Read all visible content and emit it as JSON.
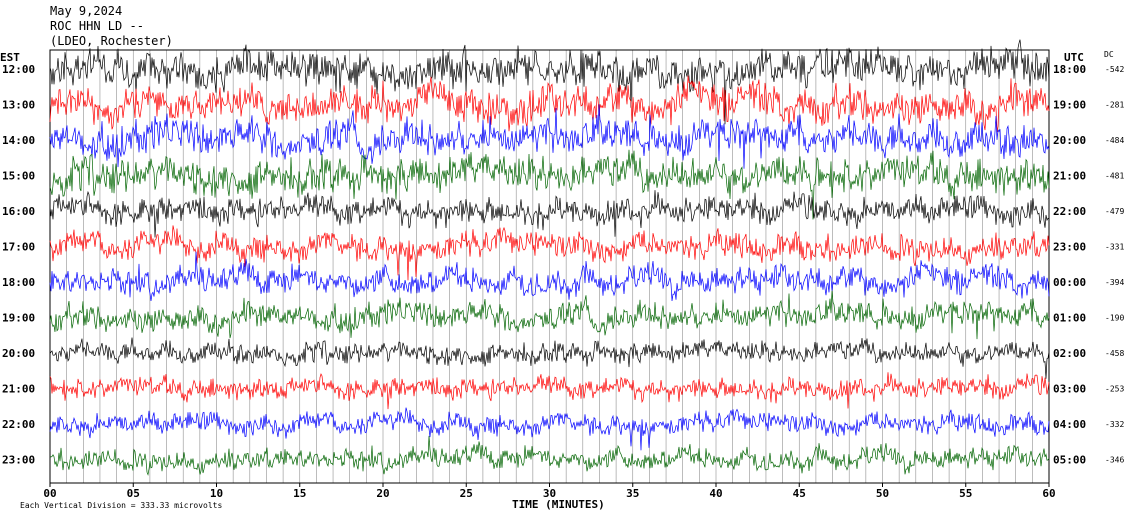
{
  "header": {
    "date": "May 9,2024",
    "station": "ROC HHN LD --",
    "location": "(LDEO, Rochester)"
  },
  "chart_data": {
    "type": "line",
    "title": "",
    "left_axis_label": "EST",
    "right_axis_label": "UTC",
    "dc_label": "DC",
    "xlabel": "TIME (MINUTES)",
    "xlim": [
      0,
      60
    ],
    "x_ticks": [
      "00",
      "05",
      "10",
      "15",
      "20",
      "25",
      "30",
      "35",
      "40",
      "45",
      "50",
      "55",
      "60"
    ],
    "grid_vertical": true,
    "trace_colors": [
      "#000000",
      "#ff0000",
      "#0000ff",
      "#006400"
    ],
    "rows": [
      {
        "est": "12:00",
        "utc": "18:00",
        "dc": "-542",
        "color": "#000000"
      },
      {
        "est": "13:00",
        "utc": "19:00",
        "dc": "-281",
        "color": "#ff0000"
      },
      {
        "est": "14:00",
        "utc": "20:00",
        "dc": "-484",
        "color": "#0000ff"
      },
      {
        "est": "15:00",
        "utc": "21:00",
        "dc": "-481",
        "color": "#006400"
      },
      {
        "est": "16:00",
        "utc": "22:00",
        "dc": "-479",
        "color": "#000000"
      },
      {
        "est": "17:00",
        "utc": "23:00",
        "dc": "-331",
        "color": "#ff0000"
      },
      {
        "est": "18:00",
        "utc": "00:00",
        "dc": "-394",
        "color": "#0000ff"
      },
      {
        "est": "19:00",
        "utc": "01:00",
        "dc": "-190",
        "color": "#006400"
      },
      {
        "est": "20:00",
        "utc": "02:00",
        "dc": "-458",
        "color": "#000000"
      },
      {
        "est": "21:00",
        "utc": "03:00",
        "dc": "-253",
        "color": "#ff0000"
      },
      {
        "est": "22:00",
        "utc": "04:00",
        "dc": "-332",
        "color": "#0000ff"
      },
      {
        "est": "23:00",
        "utc": "05:00",
        "dc": "-346",
        "color": "#006400"
      }
    ],
    "scale_note": "Each Vertical Division =  333.33 microvolts"
  }
}
